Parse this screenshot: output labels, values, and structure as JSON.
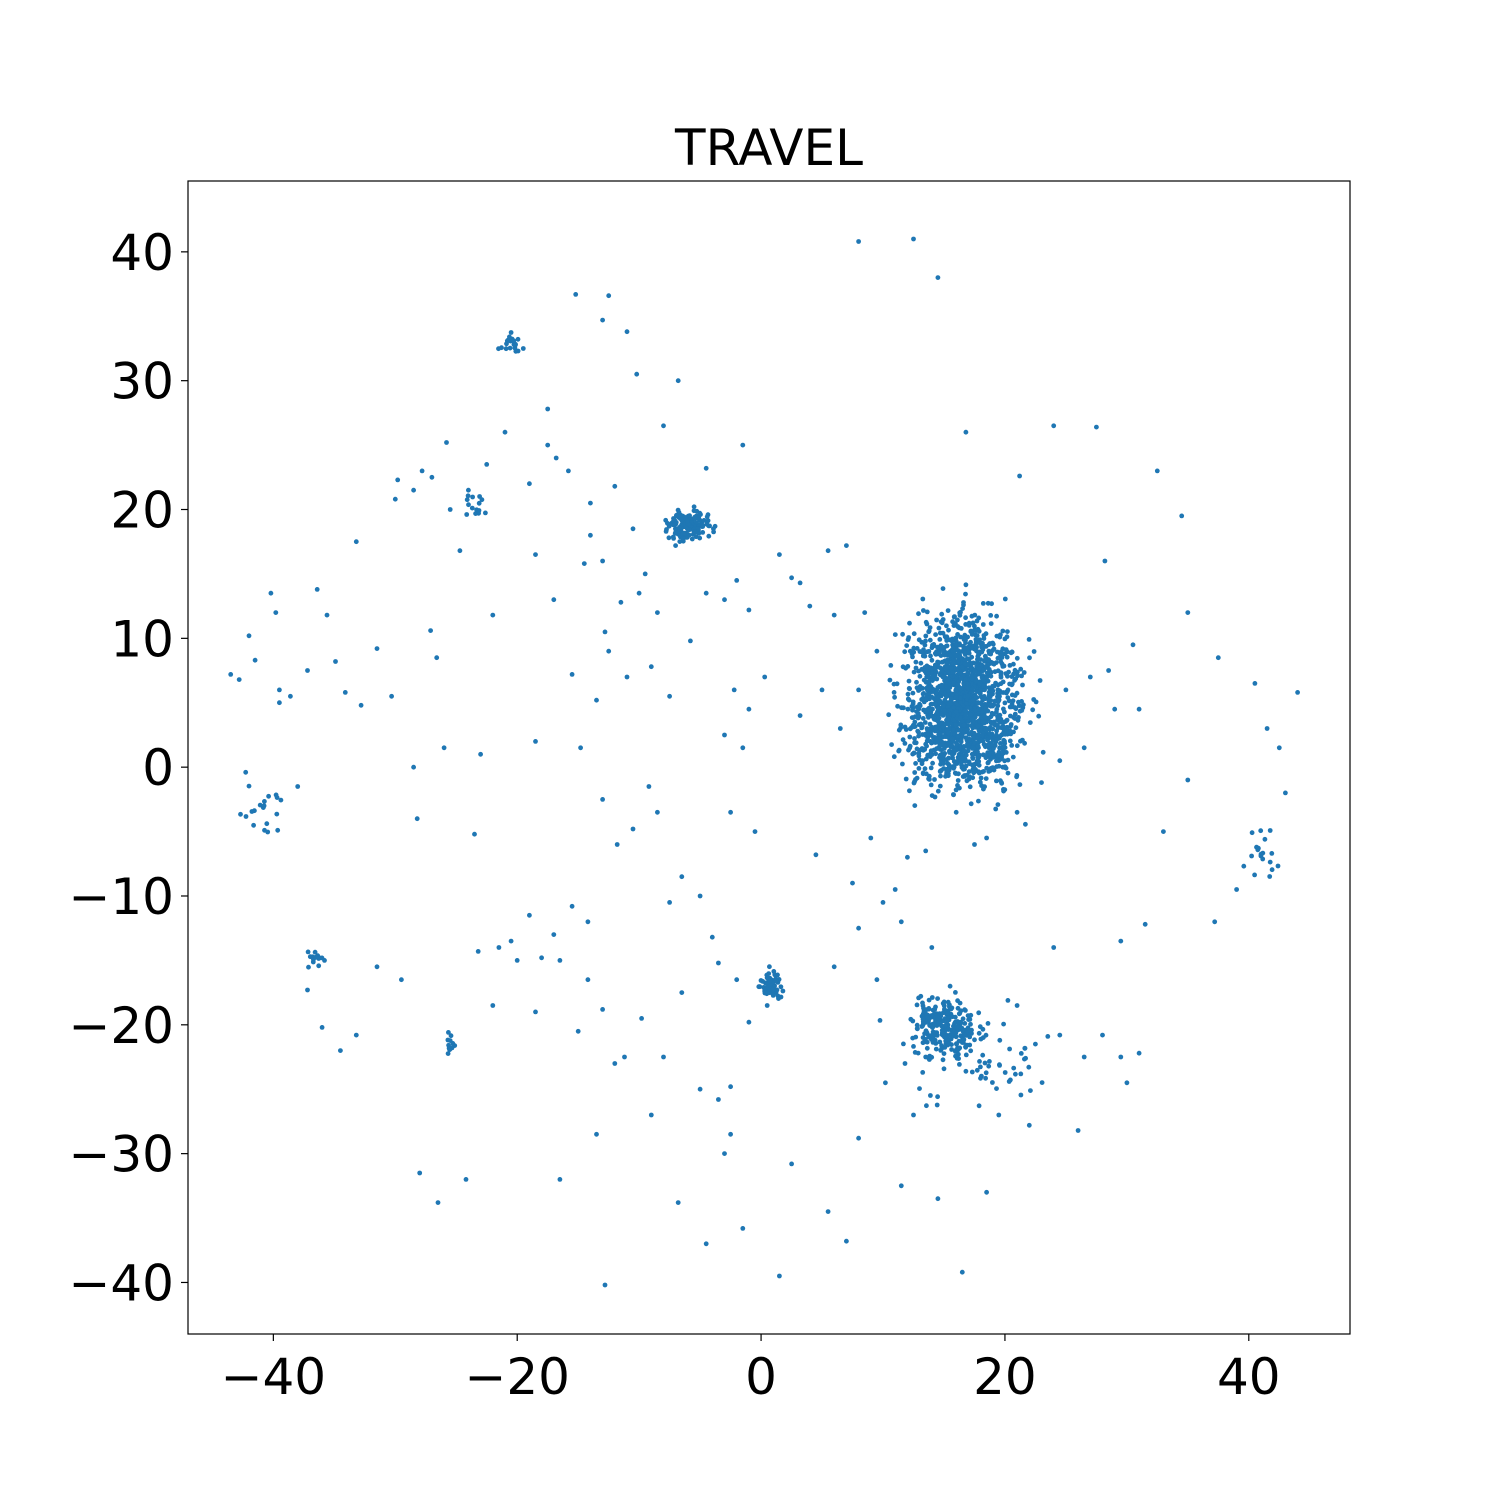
{
  "chart_data": {
    "type": "scatter",
    "title": "TRAVEL",
    "xlabel": "",
    "ylabel": "",
    "xlim": [
      -47,
      48.3
    ],
    "ylim": [
      -44,
      45.5
    ],
    "xticks": [
      -40,
      -20,
      0,
      20,
      40
    ],
    "yticks": [
      -40,
      -30,
      -20,
      -10,
      0,
      10,
      20,
      30,
      40
    ],
    "xtick_labels": [
      "−40",
      "−20",
      "0",
      "20",
      "40"
    ],
    "ytick_labels": [
      "−40",
      "−30",
      "−20",
      "−10",
      "0",
      "10",
      "20",
      "30",
      "40"
    ],
    "grid": false,
    "legend": "none",
    "color": "#1f77b4",
    "series": [
      {
        "clusters": [
          {
            "center": [
              16.5,
              5.0
            ],
            "spread": [
              3.2,
              4.5
            ],
            "count": 1800
          },
          {
            "center": [
              -6.0,
              18.8
            ],
            "spread": [
              1.3,
              0.9
            ],
            "count": 160
          },
          {
            "center": [
              15.2,
              -20.0
            ],
            "spread": [
              1.8,
              1.6
            ],
            "count": 220
          },
          {
            "center": [
              0.8,
              -17.0
            ],
            "spread": [
              0.6,
              0.8
            ],
            "count": 70
          },
          {
            "center": [
              17.0,
              -22.5
            ],
            "spread": [
              4.0,
              2.5
            ],
            "count": 90
          },
          {
            "center": [
              -20.5,
              33.0
            ],
            "spread": [
              0.6,
              0.6
            ],
            "count": 20
          },
          {
            "center": [
              -25.5,
              -21.3
            ],
            "spread": [
              0.3,
              0.6
            ],
            "count": 12
          },
          {
            "center": [
              -41.0,
              -3.0
            ],
            "spread": [
              1.2,
              1.6
            ],
            "count": 20
          },
          {
            "center": [
              41.0,
              -6.5
            ],
            "spread": [
              1.0,
              1.5
            ],
            "count": 20
          },
          {
            "center": [
              -36.5,
              -15.0
            ],
            "spread": [
              0.6,
              0.5
            ],
            "count": 14
          },
          {
            "center": [
              -23.5,
              20.3
            ],
            "spread": [
              0.6,
              0.6
            ],
            "count": 14
          }
        ],
        "points": [
          [
            -43.5,
            7.2
          ],
          [
            -42.8,
            6.8
          ],
          [
            -42.0,
            10.2
          ],
          [
            -41.5,
            8.3
          ],
          [
            -40.2,
            13.5
          ],
          [
            -39.8,
            12.0
          ],
          [
            -39.5,
            6.0
          ],
          [
            -38.6,
            5.5
          ],
          [
            -37.2,
            7.5
          ],
          [
            -36.4,
            13.8
          ],
          [
            -35.6,
            11.8
          ],
          [
            -34.9,
            8.2
          ],
          [
            -34.1,
            5.8
          ],
          [
            -33.2,
            17.5
          ],
          [
            -32.8,
            4.8
          ],
          [
            -31.5,
            9.2
          ],
          [
            -30.3,
            5.5
          ],
          [
            -29.8,
            22.3
          ],
          [
            -28.5,
            0.0
          ],
          [
            -27.8,
            23.0
          ],
          [
            -27.1,
            10.6
          ],
          [
            -26.6,
            8.5
          ],
          [
            -25.8,
            25.2
          ],
          [
            -24.7,
            16.8
          ],
          [
            -23.0,
            1.0
          ],
          [
            -22.0,
            11.8
          ],
          [
            -21.0,
            26.0
          ],
          [
            -19.5,
            32.5
          ],
          [
            -18.5,
            2.0
          ],
          [
            -17.5,
            27.8
          ],
          [
            -16.8,
            24.0
          ],
          [
            -15.2,
            36.7
          ],
          [
            -14.5,
            15.8
          ],
          [
            -13.0,
            34.7
          ],
          [
            -12.5,
            36.6
          ],
          [
            -11.0,
            33.8
          ],
          [
            -10.2,
            30.5
          ],
          [
            -8.0,
            26.5
          ],
          [
            -6.8,
            30.0
          ],
          [
            -4.5,
            23.2
          ],
          [
            -1.5,
            25.0
          ],
          [
            1.5,
            16.5
          ],
          [
            3.2,
            14.3
          ],
          [
            5.5,
            16.8
          ],
          [
            7.0,
            17.2
          ],
          [
            8.0,
            40.8
          ],
          [
            12.5,
            41.0
          ],
          [
            14.5,
            38.0
          ],
          [
            16.8,
            26.0
          ],
          [
            21.2,
            22.6
          ],
          [
            24.0,
            26.5
          ],
          [
            27.5,
            26.4
          ],
          [
            28.2,
            16.0
          ],
          [
            32.5,
            23.0
          ],
          [
            34.5,
            19.5
          ],
          [
            35.0,
            12.0
          ],
          [
            37.5,
            8.5
          ],
          [
            40.5,
            6.5
          ],
          [
            41.5,
            3.0
          ],
          [
            42.5,
            1.5
          ],
          [
            44.0,
            5.8
          ],
          [
            43.0,
            -2.0
          ],
          [
            39.0,
            -9.5
          ],
          [
            37.2,
            -12.0
          ],
          [
            35.0,
            -1.0
          ],
          [
            33.0,
            -5.0
          ],
          [
            31.5,
            -12.2
          ],
          [
            29.5,
            -13.5
          ],
          [
            26.0,
            -28.2
          ],
          [
            24.0,
            -14.0
          ],
          [
            22.0,
            -27.8
          ],
          [
            19.5,
            -27.0
          ],
          [
            18.5,
            -33.0
          ],
          [
            16.5,
            -39.2
          ],
          [
            14.5,
            -33.5
          ],
          [
            11.5,
            -32.5
          ],
          [
            8.0,
            -28.8
          ],
          [
            7.0,
            -36.8
          ],
          [
            5.5,
            -34.5
          ],
          [
            2.5,
            -30.8
          ],
          [
            1.5,
            -39.5
          ],
          [
            0.5,
            -18.5
          ],
          [
            -1.5,
            -35.8
          ],
          [
            -2.5,
            -28.5
          ],
          [
            -4.5,
            -37.0
          ],
          [
            -6.8,
            -33.8
          ],
          [
            -9.0,
            -27.0
          ],
          [
            -11.2,
            -22.5
          ],
          [
            -12.8,
            -40.2
          ],
          [
            -13.5,
            -28.5
          ],
          [
            -16.5,
            -32.0
          ],
          [
            -18.5,
            -19.0
          ],
          [
            -20.5,
            -13.5
          ],
          [
            -22.0,
            -18.5
          ],
          [
            -24.2,
            -32.0
          ],
          [
            -26.5,
            -33.8
          ],
          [
            -28.0,
            -31.5
          ],
          [
            -29.5,
            -16.5
          ],
          [
            -31.5,
            -15.5
          ],
          [
            -33.2,
            -20.8
          ],
          [
            -34.5,
            -22.0
          ],
          [
            -37.2,
            -17.3
          ],
          [
            -36.0,
            -20.2
          ],
          [
            -38.0,
            -1.5
          ],
          [
            -39.5,
            5.0
          ],
          [
            -28.2,
            -4.0
          ],
          [
            -26.0,
            1.5
          ],
          [
            -23.5,
            -5.2
          ],
          [
            -23.2,
            -14.3
          ],
          [
            -17.0,
            -13.0
          ],
          [
            -15.5,
            -10.8
          ],
          [
            -14.2,
            -12.0
          ],
          [
            -13.0,
            -2.5
          ],
          [
            -11.8,
            -6.0
          ],
          [
            -10.5,
            -4.8
          ],
          [
            -9.2,
            -1.5
          ],
          [
            -8.5,
            -3.5
          ],
          [
            -7.5,
            -10.5
          ],
          [
            -6.5,
            -8.5
          ],
          [
            -5.0,
            -10.0
          ],
          [
            -4.0,
            -13.2
          ],
          [
            -3.5,
            -15.2
          ],
          [
            -2.0,
            -16.5
          ],
          [
            -1.0,
            -19.8
          ],
          [
            -0.5,
            -5.0
          ],
          [
            -2.5,
            -3.5
          ],
          [
            -1.5,
            1.5
          ],
          [
            -3.0,
            2.5
          ],
          [
            -2.2,
            6.0
          ],
          [
            -1.0,
            4.5
          ],
          [
            0.3,
            7.0
          ],
          [
            -4.5,
            13.5
          ],
          [
            -5.8,
            9.8
          ],
          [
            -7.5,
            5.5
          ],
          [
            -9.0,
            7.8
          ],
          [
            -11.0,
            7.0
          ],
          [
            -12.5,
            9.0
          ],
          [
            -13.5,
            5.2
          ],
          [
            -14.8,
            1.5
          ],
          [
            -15.5,
            7.2
          ],
          [
            -17.0,
            13.0
          ],
          [
            -18.5,
            16.5
          ],
          [
            -3.0,
            13.0
          ],
          [
            -2.0,
            14.5
          ],
          [
            -1.0,
            12.2
          ],
          [
            2.5,
            14.7
          ],
          [
            4.0,
            12.5
          ],
          [
            6.0,
            11.8
          ],
          [
            8.5,
            12.0
          ],
          [
            9.5,
            9.0
          ],
          [
            8.0,
            6.0
          ],
          [
            6.5,
            3.0
          ],
          [
            5.0,
            6.0
          ],
          [
            3.2,
            4.0
          ],
          [
            4.5,
            -6.8
          ],
          [
            7.5,
            -9.0
          ],
          [
            9.0,
            -5.5
          ],
          [
            11.0,
            -9.5
          ],
          [
            12.0,
            -7.0
          ],
          [
            13.5,
            -6.5
          ],
          [
            16.0,
            -3.5
          ],
          [
            17.5,
            -6.0
          ],
          [
            18.5,
            -5.5
          ],
          [
            21.0,
            -3.5
          ],
          [
            23.0,
            -1.2
          ],
          [
            24.5,
            0.5
          ],
          [
            26.5,
            1.5
          ],
          [
            29.0,
            4.5
          ],
          [
            31.0,
            4.5
          ],
          [
            25.0,
            6.0
          ],
          [
            27.0,
            7.0
          ],
          [
            28.5,
            7.5
          ],
          [
            30.5,
            9.5
          ],
          [
            6.0,
            -15.5
          ],
          [
            8.0,
            -12.5
          ],
          [
            9.5,
            -16.5
          ],
          [
            10.2,
            -24.5
          ],
          [
            11.8,
            -23.0
          ],
          [
            12.5,
            -27.0
          ],
          [
            13.5,
            -22.5
          ],
          [
            21.0,
            -18.5
          ],
          [
            22.5,
            -21.5
          ],
          [
            24.5,
            -20.8
          ],
          [
            26.5,
            -22.5
          ],
          [
            28.0,
            -20.8
          ],
          [
            29.5,
            -22.5
          ],
          [
            30.0,
            -24.5
          ],
          [
            31.0,
            -22.2
          ],
          [
            14.0,
            -14.0
          ],
          [
            15.5,
            -17.0
          ],
          [
            10.0,
            -10.5
          ],
          [
            11.5,
            -12.0
          ],
          [
            -20.0,
            -15.0
          ],
          [
            -21.5,
            -14.0
          ],
          [
            -19.0,
            -11.5
          ],
          [
            -18.0,
            -14.8
          ],
          [
            -16.5,
            -15.0
          ],
          [
            -15.0,
            -20.5
          ],
          [
            -14.2,
            -16.5
          ],
          [
            -13.0,
            -18.8
          ],
          [
            -12.0,
            -23.0
          ],
          [
            -9.8,
            -19.5
          ],
          [
            -8.0,
            -22.5
          ],
          [
            -6.5,
            -17.5
          ],
          [
            -5.0,
            -25.0
          ],
          [
            -3.5,
            -25.8
          ],
          [
            -2.5,
            -24.8
          ],
          [
            -3.0,
            -30.0
          ],
          [
            -19.0,
            22.0
          ],
          [
            -17.5,
            25.0
          ],
          [
            -15.8,
            23.0
          ],
          [
            -14.0,
            20.5
          ],
          [
            -12.0,
            21.8
          ],
          [
            -10.5,
            18.5
          ],
          [
            -9.5,
            15.0
          ],
          [
            -8.5,
            12.0
          ],
          [
            -10.0,
            13.5
          ],
          [
            -11.5,
            12.8
          ],
          [
            -12.8,
            10.5
          ],
          [
            -14.0,
            18.0
          ],
          [
            -13.0,
            16.0
          ],
          [
            -22.5,
            23.5
          ],
          [
            -24.0,
            21.5
          ],
          [
            -25.5,
            20.0
          ],
          [
            -27.0,
            22.5
          ],
          [
            -28.5,
            21.5
          ],
          [
            -30.0,
            20.8
          ]
        ]
      }
    ]
  }
}
